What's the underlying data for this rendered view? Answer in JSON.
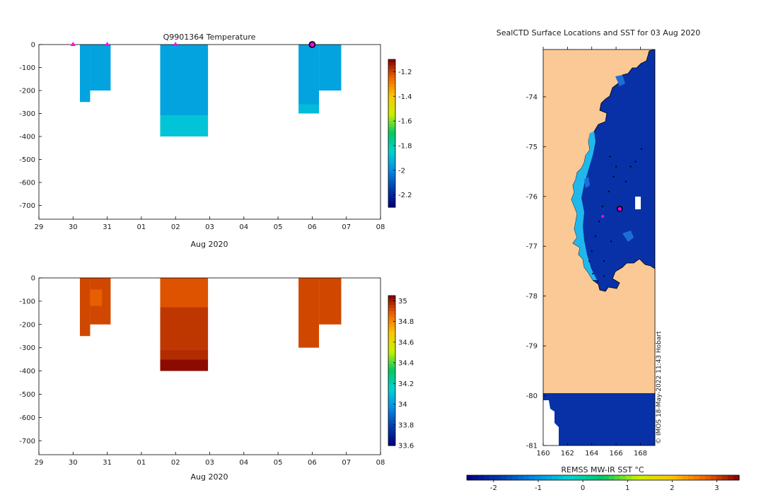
{
  "chart_data": [
    {
      "type": "heatmap",
      "title": "Q9901364  Temperature",
      "xlabel": "Aug 2020",
      "ylabel": "",
      "x_tick_labels": [
        "29",
        "30",
        "31",
        "01",
        "02",
        "03",
        "04",
        "05",
        "06",
        "07",
        "08"
      ],
      "y_ticks": [
        0,
        -100,
        -200,
        -300,
        -400,
        -500,
        -600,
        -700
      ],
      "ylim": [
        -760,
        0
      ],
      "colorbar": {
        "range": [
          -2.3,
          -1.1
        ],
        "ticks": [
          -1.2,
          -1.4,
          -1.6,
          -1.8,
          -2,
          -2.2
        ]
      },
      "cells": [
        {
          "x0": 30.2,
          "x1": 30.5,
          "y0": 0,
          "y1": -250,
          "value": -1.95
        },
        {
          "x0": 30.5,
          "x1": 31.1,
          "y0": 0,
          "y1": -200,
          "value": -1.95
        },
        {
          "x0": 32.55,
          "x1": 33.95,
          "y0": 0,
          "y1": -310,
          "value": -1.95
        },
        {
          "x0": 32.55,
          "x1": 33.95,
          "y0": -310,
          "y1": -400,
          "value": -1.88
        },
        {
          "x0": 36.6,
          "x1": 37.2,
          "y0": 0,
          "y1": -260,
          "value": -1.95
        },
        {
          "x0": 36.6,
          "x1": 37.2,
          "y0": -260,
          "y1": -300,
          "value": -1.9
        },
        {
          "x0": 37.2,
          "x1": 37.85,
          "y0": 0,
          "y1": -200,
          "value": -1.95
        }
      ],
      "markers": [
        {
          "x": 30.0,
          "y": 0,
          "style": "triangle"
        },
        {
          "x": 31.0,
          "y": 0,
          "style": "triangle"
        },
        {
          "x": 33.0,
          "y": 0,
          "style": "triangle"
        },
        {
          "x": 37.0,
          "y": 0,
          "style": "circle"
        }
      ]
    },
    {
      "type": "heatmap",
      "title": "",
      "xlabel": "Aug 2020",
      "ylabel": "",
      "x_tick_labels": [
        "29",
        "30",
        "31",
        "01",
        "02",
        "03",
        "04",
        "05",
        "06",
        "07",
        "08"
      ],
      "y_ticks": [
        0,
        -100,
        -200,
        -300,
        -400,
        -500,
        -600,
        -700
      ],
      "ylim": [
        -760,
        0
      ],
      "colorbar": {
        "range": [
          33.6,
          35.05
        ],
        "ticks": [
          35,
          34.8,
          34.6,
          34.4,
          34.2,
          34,
          33.8,
          33.6
        ]
      },
      "cells": [
        {
          "x0": 30.2,
          "x1": 30.5,
          "y0": 0,
          "y1": -250,
          "value": 34.92
        },
        {
          "x0": 30.5,
          "x1": 31.1,
          "y0": 0,
          "y1": -200,
          "value": 34.92
        },
        {
          "x0": 30.5,
          "x1": 30.85,
          "y0": -50,
          "y1": -120,
          "value": 34.88
        },
        {
          "x0": 32.55,
          "x1": 33.95,
          "y0": 0,
          "y1": -125,
          "value": 34.9
        },
        {
          "x0": 32.55,
          "x1": 33.95,
          "y0": -125,
          "y1": -310,
          "value": 34.95
        },
        {
          "x0": 32.55,
          "x1": 33.95,
          "y0": -310,
          "y1": -350,
          "value": 34.97
        },
        {
          "x0": 32.55,
          "x1": 33.95,
          "y0": -350,
          "y1": -400,
          "value": 35.03
        },
        {
          "x0": 36.6,
          "x1": 37.2,
          "y0": 0,
          "y1": -300,
          "value": 34.92
        },
        {
          "x0": 37.2,
          "x1": 37.85,
          "y0": 0,
          "y1": -200,
          "value": 34.92
        }
      ]
    },
    {
      "type": "heatmap",
      "title": "SealCTD Surface Locations and SST for 03 Aug 2020",
      "xlabel": "REMSS MW-IR SST °C",
      "x_ticks": [
        160,
        162,
        164,
        166,
        168
      ],
      "y_ticks": [
        -74,
        -75,
        -76,
        -77,
        -78,
        -79,
        -80,
        -81
      ],
      "xlim": [
        160,
        169.2
      ],
      "ylim": [
        -81,
        -73.05
      ],
      "colorbar": {
        "range": [
          -2.6,
          3.5
        ],
        "ticks": [
          -2,
          -1,
          0,
          1,
          2,
          3
        ],
        "orientation": "horizontal"
      },
      "land_color": "#fbc995",
      "sst_color_open": "#0831a8",
      "sst_color_coastal": "#20b8ec",
      "track_points": [
        [
          165.5,
          -75.2
        ],
        [
          166.0,
          -75.4
        ],
        [
          165.8,
          -75.6
        ],
        [
          165.4,
          -75.9
        ],
        [
          164.9,
          -76.2
        ],
        [
          164.6,
          -76.5
        ],
        [
          164.3,
          -76.8
        ],
        [
          164.0,
          -77.1
        ],
        [
          163.8,
          -77.3
        ],
        [
          164.1,
          -77.55
        ],
        [
          164.5,
          -77.7
        ],
        [
          165.0,
          -77.3
        ],
        [
          165.6,
          -76.9
        ],
        [
          166.8,
          -75.7
        ],
        [
          167.2,
          -75.4
        ],
        [
          168.1,
          -75.05
        ],
        [
          167.6,
          -75.3
        ],
        [
          165.0,
          -77.6
        ]
      ],
      "profile_locations": [
        {
          "lon": 166.3,
          "lat": -76.25,
          "style": "circle"
        },
        {
          "lon": 164.9,
          "lat": -76.4,
          "style": "dot"
        }
      ],
      "credit": "© IMOS 18-May-2022 11:43 Hobart"
    }
  ],
  "colors": {
    "axis": "#000000",
    "magenta": "#ff00ff"
  }
}
